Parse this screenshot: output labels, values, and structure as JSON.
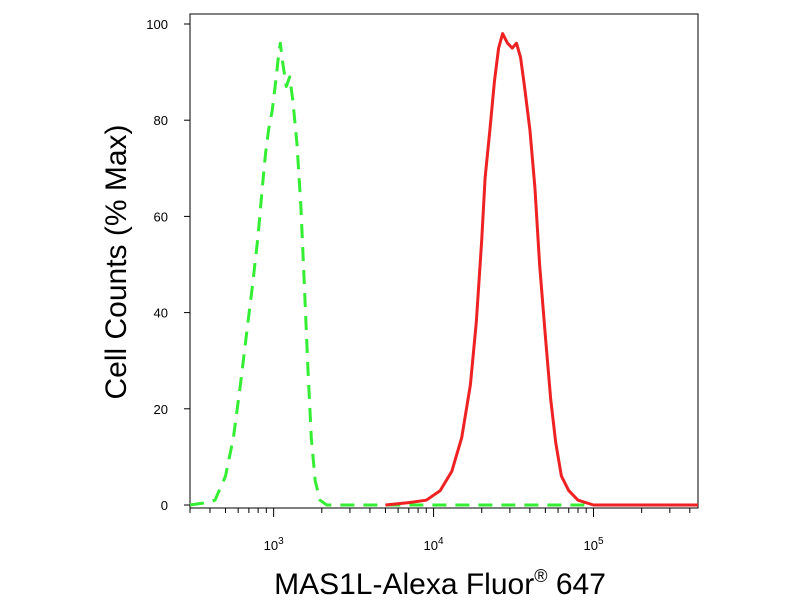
{
  "chart_data": {
    "type": "line",
    "title": "",
    "xlabel": "MAS1L-Alexa Fluor",
    "xlabel_superscript": "®",
    "xlabel_suffix": " 647",
    "ylabel": "Cell Counts (% Max)",
    "x_scale": "log",
    "xlim": [
      300,
      450000
    ],
    "ylim": [
      0,
      100
    ],
    "y_ticks": [
      0,
      20,
      40,
      60,
      80,
      100
    ],
    "y_tick_labels": [
      "0",
      "20",
      "40",
      "60",
      "80",
      "100"
    ],
    "x_major_ticks": [
      1000,
      10000,
      100000
    ],
    "x_tick_labels": [
      {
        "base": "10",
        "exp": "3"
      },
      {
        "base": "10",
        "exp": "4"
      },
      {
        "base": "10",
        "exp": "5"
      }
    ],
    "grid": false,
    "legend": "none",
    "series": [
      {
        "color": "#33ee33",
        "style": "dashed",
        "points": [
          [
            300,
            0
          ],
          [
            380,
            0.5
          ],
          [
            430,
            1
          ],
          [
            500,
            6
          ],
          [
            560,
            14
          ],
          [
            620,
            25
          ],
          [
            680,
            36
          ],
          [
            740,
            46
          ],
          [
            800,
            56
          ],
          [
            850,
            66
          ],
          [
            890,
            73
          ],
          [
            930,
            78
          ],
          [
            980,
            82
          ],
          [
            1030,
            88
          ],
          [
            1070,
            93
          ],
          [
            1100,
            96
          ],
          [
            1140,
            92
          ],
          [
            1200,
            87
          ],
          [
            1260,
            89
          ],
          [
            1320,
            84
          ],
          [
            1400,
            75
          ],
          [
            1480,
            62
          ],
          [
            1560,
            45
          ],
          [
            1640,
            28
          ],
          [
            1720,
            14
          ],
          [
            1820,
            5
          ],
          [
            1950,
            1
          ],
          [
            2150,
            0
          ],
          [
            2600,
            0
          ],
          [
            5000,
            0
          ],
          [
            10000,
            0
          ],
          [
            30000,
            0
          ],
          [
            100000,
            0
          ],
          [
            450000,
            0
          ]
        ]
      },
      {
        "color": "#ee2222",
        "style": "solid",
        "points": [
          [
            5000,
            0
          ],
          [
            7000,
            0.5
          ],
          [
            9000,
            1
          ],
          [
            11000,
            3
          ],
          [
            13000,
            7
          ],
          [
            15000,
            14
          ],
          [
            17000,
            25
          ],
          [
            18500,
            38
          ],
          [
            20000,
            55
          ],
          [
            21000,
            68
          ],
          [
            22500,
            78
          ],
          [
            24000,
            88
          ],
          [
            25500,
            95
          ],
          [
            27000,
            98
          ],
          [
            29000,
            96
          ],
          [
            31000,
            95
          ],
          [
            33000,
            96
          ],
          [
            35000,
            93
          ],
          [
            37000,
            87
          ],
          [
            40000,
            78
          ],
          [
            43000,
            66
          ],
          [
            46000,
            50
          ],
          [
            50000,
            35
          ],
          [
            54000,
            22
          ],
          [
            58000,
            13
          ],
          [
            63000,
            6
          ],
          [
            70000,
            3
          ],
          [
            80000,
            1
          ],
          [
            100000,
            0
          ],
          [
            200000,
            0
          ],
          [
            450000,
            0
          ]
        ]
      }
    ]
  }
}
